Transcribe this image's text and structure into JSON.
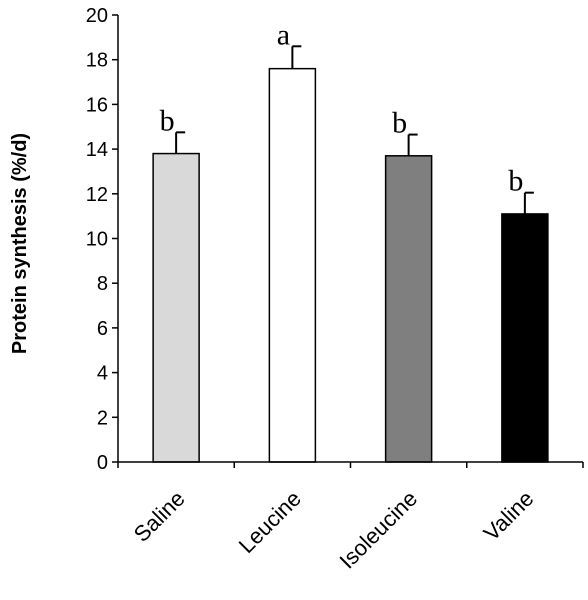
{
  "chart_data": {
    "type": "bar",
    "categories": [
      "Saline",
      "Leucine",
      "Isoleucine",
      "Valine"
    ],
    "values": [
      13.8,
      17.6,
      13.7,
      11.1
    ],
    "errors": [
      0.95,
      1.0,
      0.95,
      0.95
    ],
    "significance_letters": [
      "b",
      "a",
      "b",
      "b"
    ],
    "bar_colors": [
      "#d9d9d9",
      "#ffffff",
      "#7f7f7f",
      "#000000"
    ],
    "ylabel": "Protein synthesis (%/d)",
    "ylim": [
      0,
      20
    ],
    "yticks": [
      0,
      2,
      4,
      6,
      8,
      10,
      12,
      14,
      16,
      18,
      20
    ],
    "grid": false,
    "legend": "none"
  }
}
